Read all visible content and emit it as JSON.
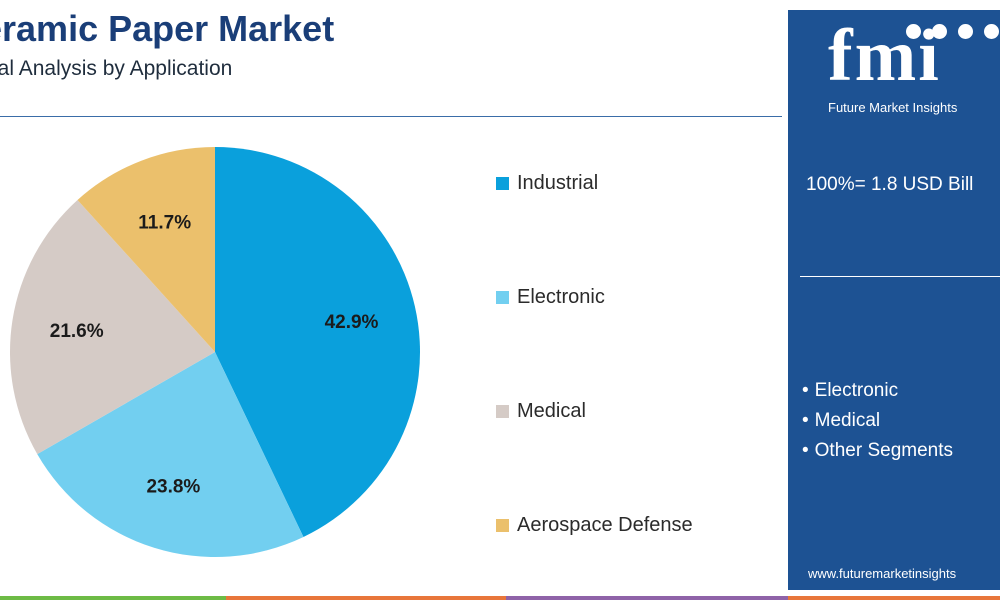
{
  "header": {
    "title": "eramic Paper Market",
    "subtitle": "bal Analysis by Application"
  },
  "chart_data": {
    "type": "pie",
    "title": "eramic Paper Market",
    "subtitle": "bal Analysis by Application",
    "slices": [
      {
        "name": "Industrial",
        "value": 42.9,
        "label": "42.9%",
        "color": "#0aa0dc"
      },
      {
        "name": "Electronic",
        "value": 23.8,
        "label": "23.8%",
        "color": "#72cff0"
      },
      {
        "name": "Medical",
        "value": 21.6,
        "label": "21.6%",
        "color": "#d5cbc6"
      },
      {
        "name": "Aerospace Defense",
        "value": 11.7,
        "label": "11.7%",
        "color": "#ebc06c"
      }
    ],
    "legend_placement": "right",
    "start_angle": "12 o'clock",
    "direction": "clockwise"
  },
  "legend": {
    "items": [
      {
        "label": "Industrial",
        "color": "#0aa0dc"
      },
      {
        "label": "Electronic",
        "color": "#72cff0"
      },
      {
        "label": "Medical",
        "color": "#d5cbc6"
      },
      {
        "label": "Aerospace Defense",
        "color": "#ebc06c"
      }
    ]
  },
  "panel": {
    "logo_text": "fmi",
    "logo_caption": "Future Market Insights",
    "total": "100%= 1.8 USD Bill",
    "segments": [
      "Electronic",
      "Medical",
      "Other Segments"
    ],
    "website": "www.futuremarketinsights"
  },
  "colors": {
    "title": "#1a3e78",
    "panel_bg": "#1d5293",
    "bottom_bar": [
      "#6dbb45",
      "#e8763a",
      "#8f63a8",
      "#e8763a"
    ]
  }
}
